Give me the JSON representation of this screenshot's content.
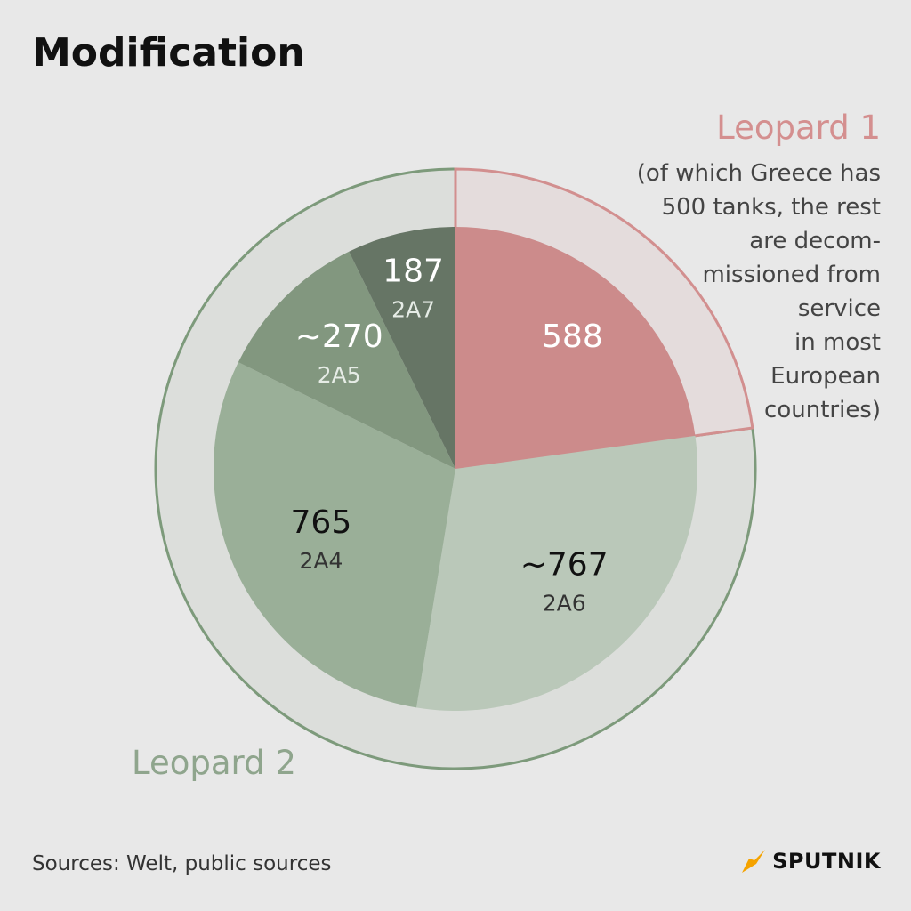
{
  "title": "Modification",
  "chart_data": {
    "type": "pie",
    "series": [
      {
        "name": "Leopard 1",
        "slices": [
          {
            "value_label": "588",
            "value": 588,
            "color": "#cc8b8b"
          }
        ]
      },
      {
        "name": "Leopard 2",
        "slices": [
          {
            "value_label": "~767",
            "label": "2A6",
            "value": 767,
            "color": "#bac8b9"
          },
          {
            "value_label": "765",
            "label": "2A4",
            "value": 765,
            "color": "#9aaf98"
          },
          {
            "value_label": "~270",
            "label": "2A5",
            "value": 270,
            "color": "#82977f"
          },
          {
            "value_label": "187",
            "label": "2A7",
            "value": 187,
            "color": "#667565"
          }
        ]
      }
    ],
    "outer_ring_colors": {
      "leopard1": "#e4dcdc",
      "leopard1_stroke": "#d28f8f",
      "leopard2": "#dcdedb",
      "leopard2_stroke": "#7d9a7b"
    }
  },
  "leopard1_label": "Leopard 1",
  "leopard1_note": "(of which Greece has\n500 tanks, the rest\nare decom-\nmissioned from\nservice \nin most \nEuropean \ncountries)",
  "leopard2_label": "Leopard 2",
  "sources": "Sources: Welt, public sources",
  "brand": {
    "name": "SPUTNIK",
    "icon": "sputnik-logo-icon",
    "color": "#f5a300"
  }
}
